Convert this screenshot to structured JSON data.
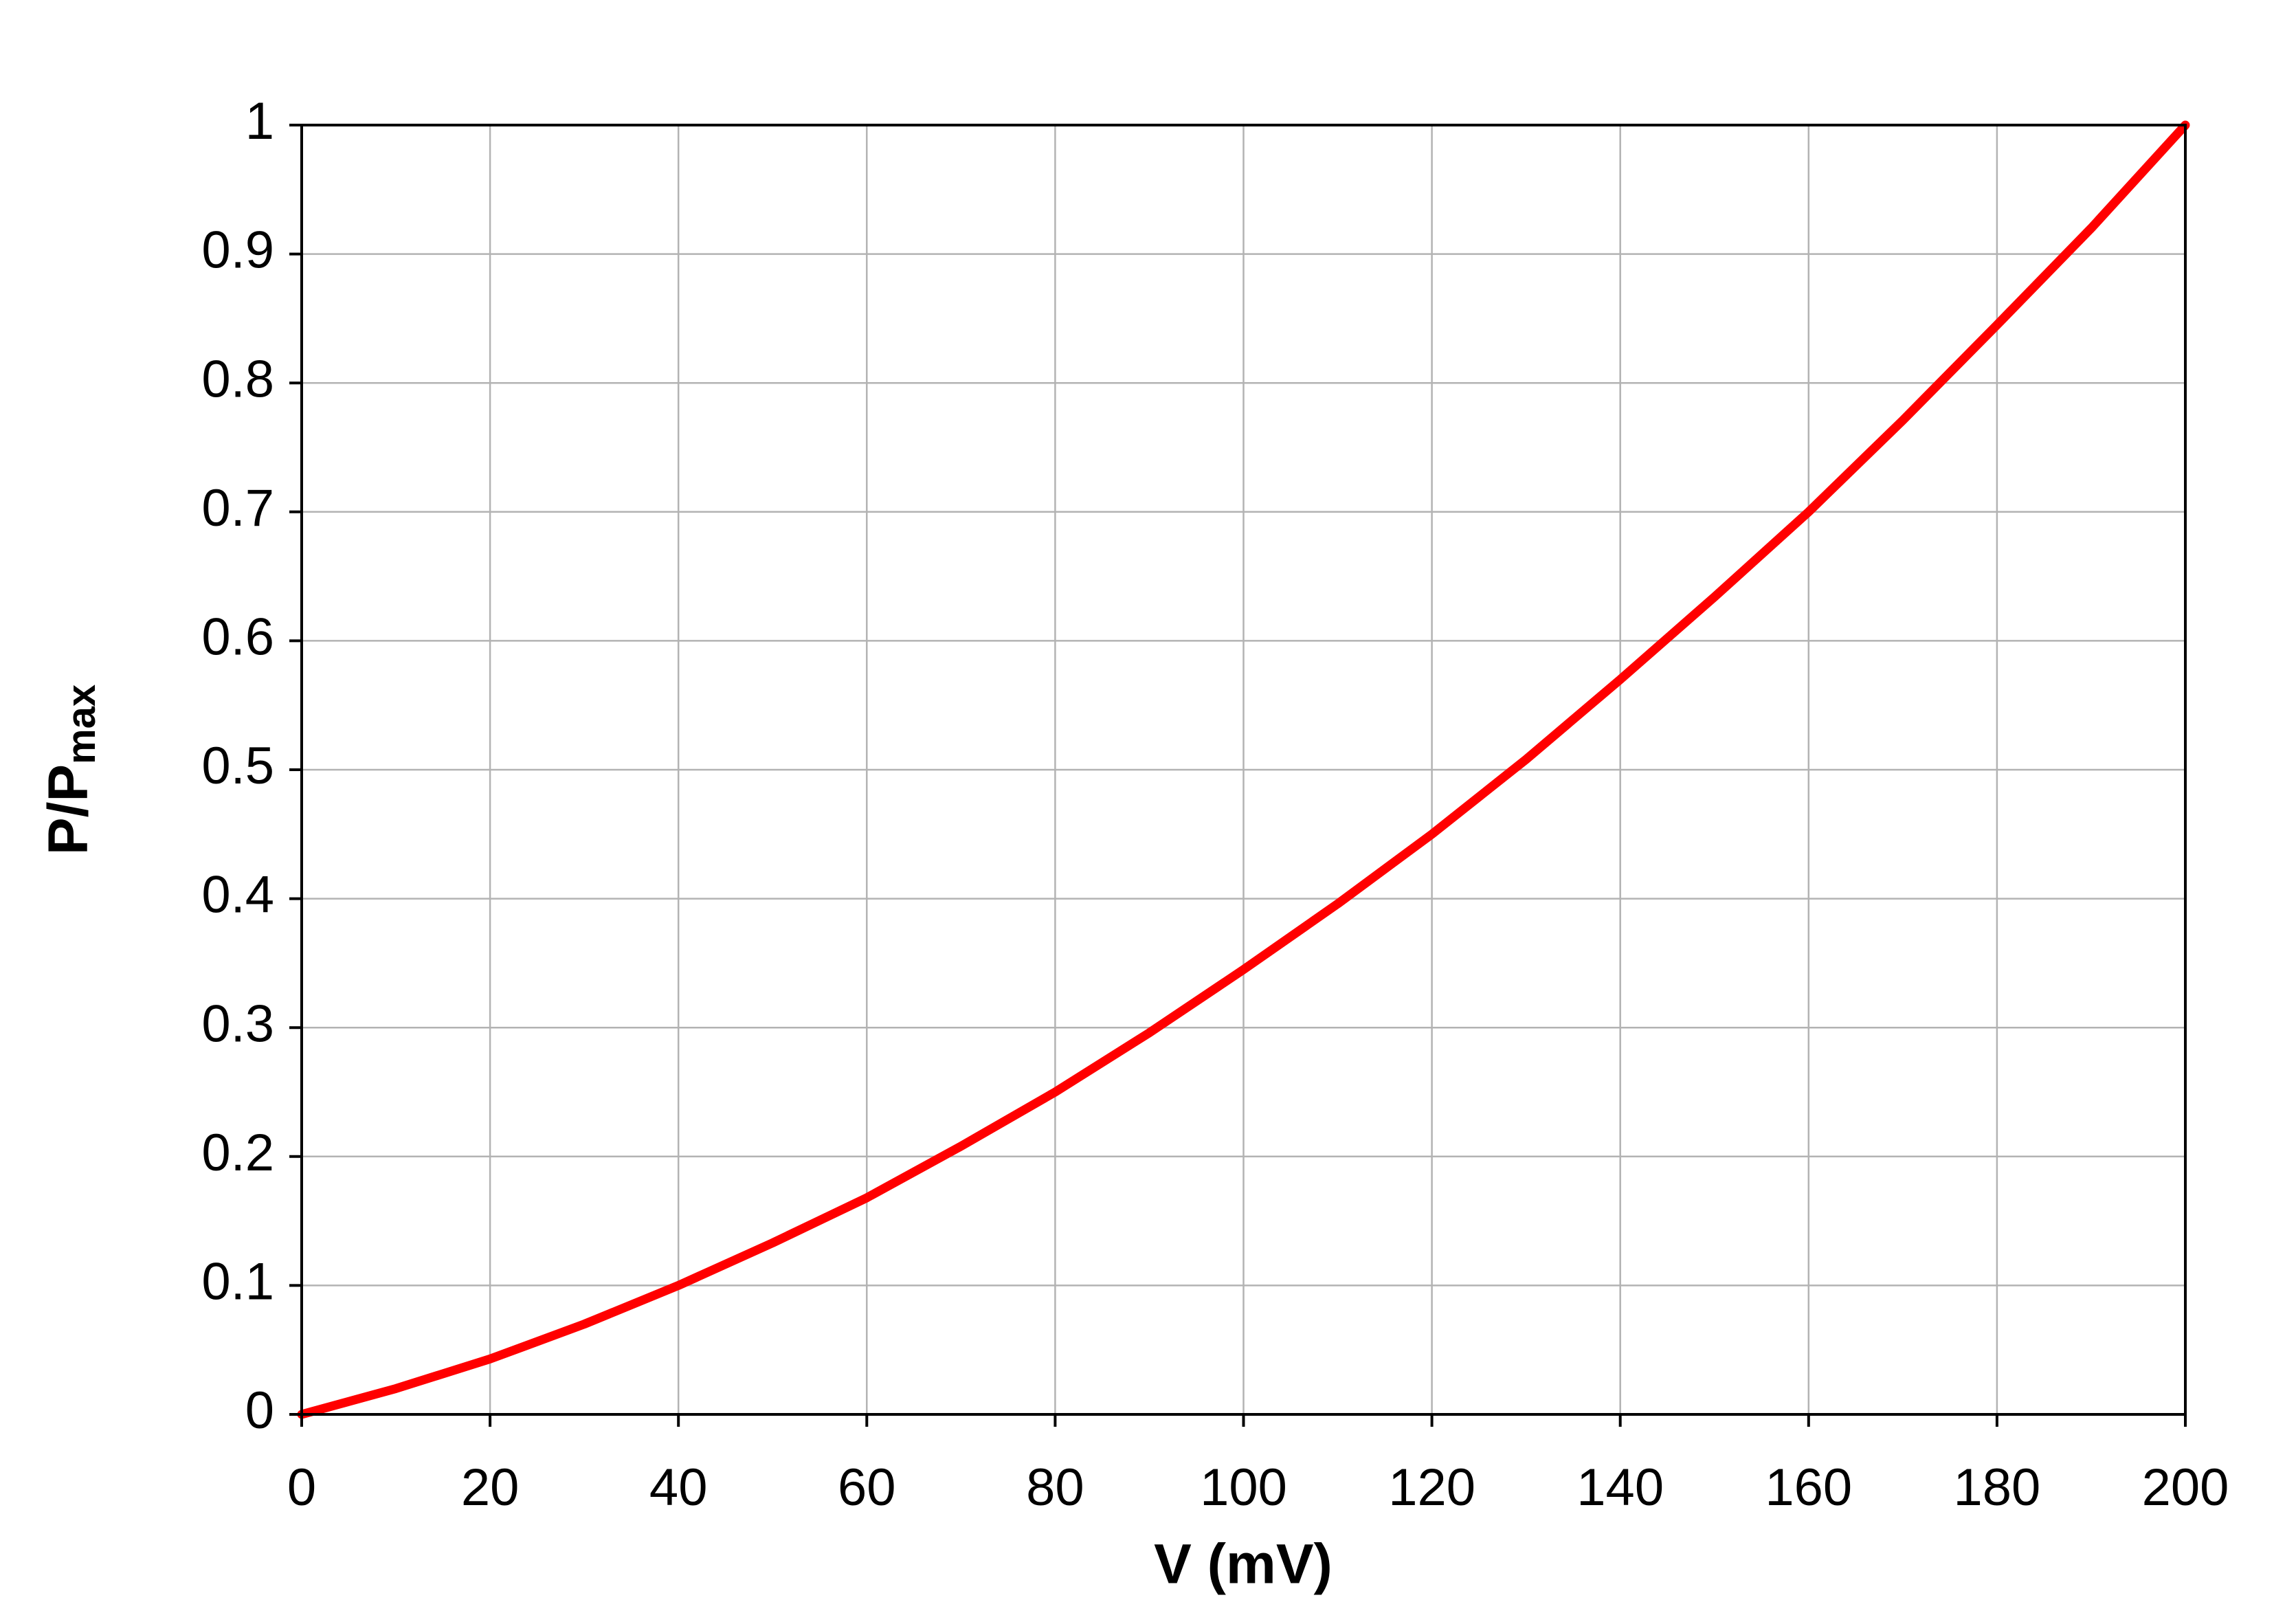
{
  "chart_data": {
    "type": "line",
    "x_label": "V (mV)",
    "y_label": {
      "text": "P/P",
      "subscript": "max"
    },
    "x": [
      0,
      10,
      20,
      30,
      40,
      50,
      60,
      70,
      80,
      90,
      100,
      110,
      120,
      130,
      140,
      150,
      160,
      170,
      180,
      190,
      200
    ],
    "series": [
      {
        "color": "#ff0000",
        "values": [
          0,
          0.02,
          0.043,
          0.07,
          0.1,
          0.133,
          0.168,
          0.208,
          0.25,
          0.296,
          0.345,
          0.396,
          0.45,
          0.508,
          0.57,
          0.634,
          0.7,
          0.771,
          0.845,
          0.92,
          1.0
        ]
      }
    ],
    "xlim": [
      0,
      200
    ],
    "xticks": [
      0,
      20,
      40,
      60,
      80,
      100,
      120,
      140,
      160,
      180,
      200
    ],
    "ylim": [
      0,
      1
    ],
    "yticks": [
      0,
      0.1,
      0.2,
      0.3,
      0.4,
      0.5,
      0.6,
      0.7,
      0.8,
      0.9,
      1
    ],
    "grid": true
  }
}
